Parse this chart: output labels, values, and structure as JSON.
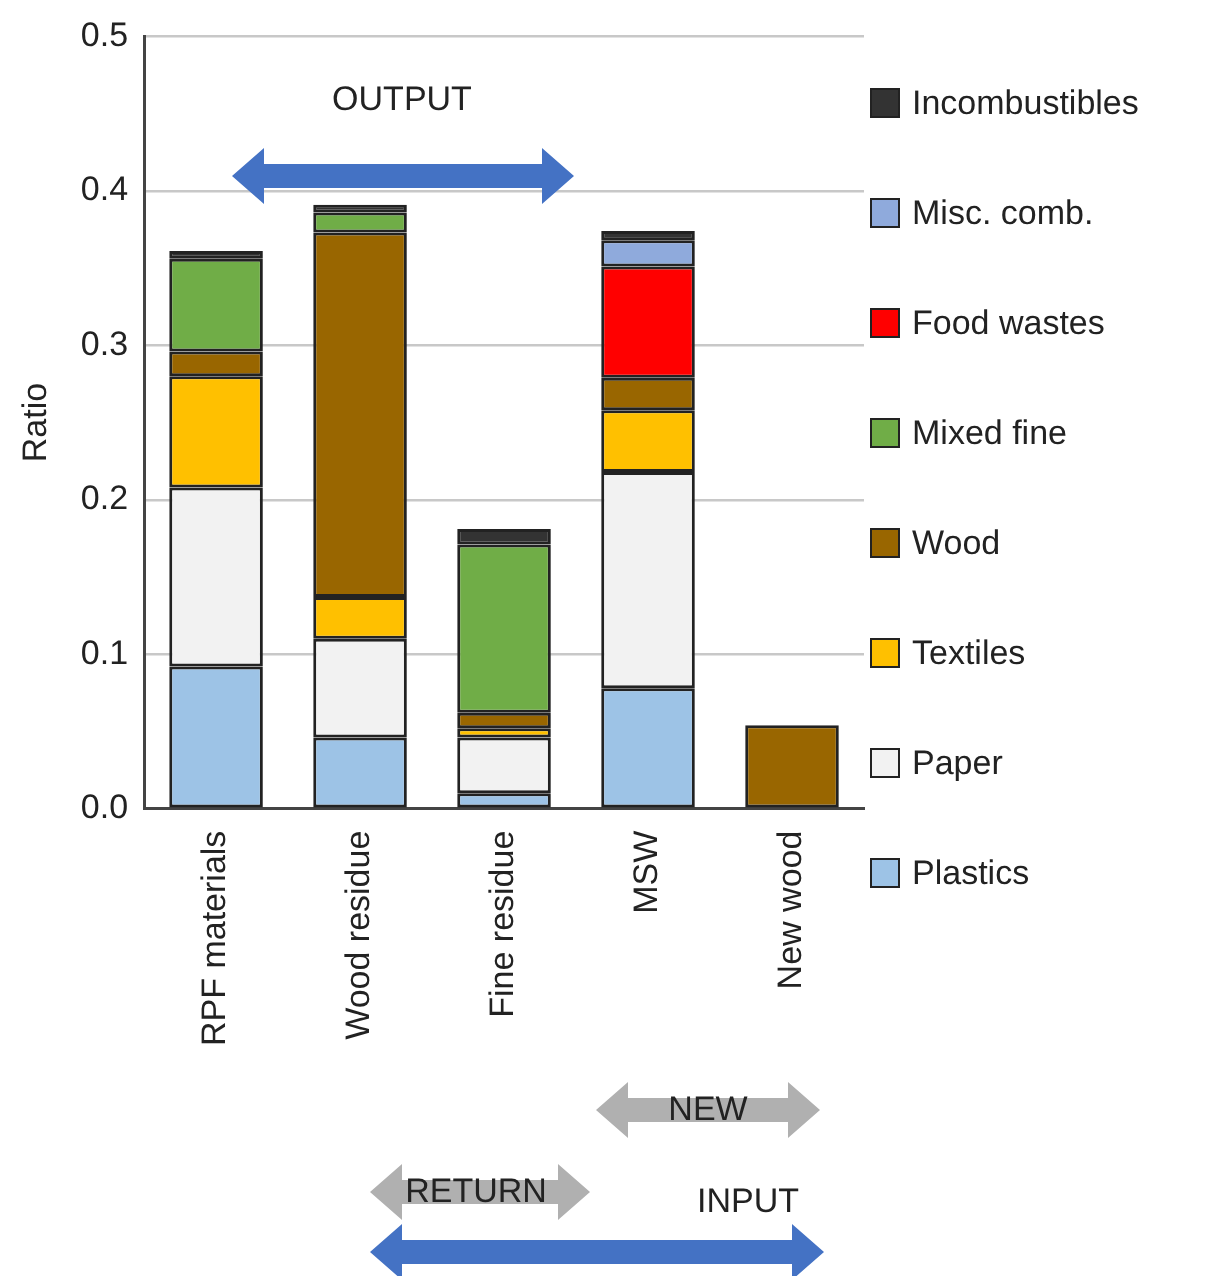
{
  "chart_data": {
    "type": "bar",
    "ylabel": "Ratio",
    "stacked": true,
    "categories": [
      "RPF materials",
      "Wood residue",
      "Fine residue",
      "MSW",
      "New wood"
    ],
    "series": [
      {
        "name": "Plastics",
        "color": "#9dc3e6",
        "values": [
          0.092,
          0.046,
          0.01,
          0.078,
          0
        ]
      },
      {
        "name": "Paper",
        "color": "#f2f2f2",
        "values": [
          0.116,
          0.064,
          0.036,
          0.14,
          0
        ]
      },
      {
        "name": "Textiles",
        "color": "#ffc000",
        "values": [
          0.072,
          0.027,
          0.006,
          0.04,
          0
        ]
      },
      {
        "name": "Wood",
        "color": "#996600",
        "values": [
          0.016,
          0.236,
          0.01,
          0.021,
          0.054
        ]
      },
      {
        "name": "Mixed fine",
        "color": "#70ad47",
        "values": [
          0.06,
          0.013,
          0.109,
          0,
          0
        ]
      },
      {
        "name": "Food wastes",
        "color": "#ff0000",
        "values": [
          0,
          0,
          0,
          0.072,
          0
        ]
      },
      {
        "name": "Misc. comb.",
        "color": "#8faadc",
        "values": [
          0,
          0,
          0,
          0.017,
          0
        ]
      },
      {
        "name": "Incombustibles",
        "color": "#333333",
        "values": [
          0.005,
          0.005,
          0.01,
          0.006,
          0
        ]
      }
    ],
    "ylim": [
      0,
      0.5
    ],
    "yticks": [
      {
        "value": 0,
        "label": "0.0"
      },
      0.1,
      0.2,
      0.3,
      0.4,
      0.5
    ],
    "grid": "y",
    "legend": "right",
    "annotations": [
      "OUTPUT",
      "NEW",
      "RETURN",
      "INPUT"
    ]
  }
}
